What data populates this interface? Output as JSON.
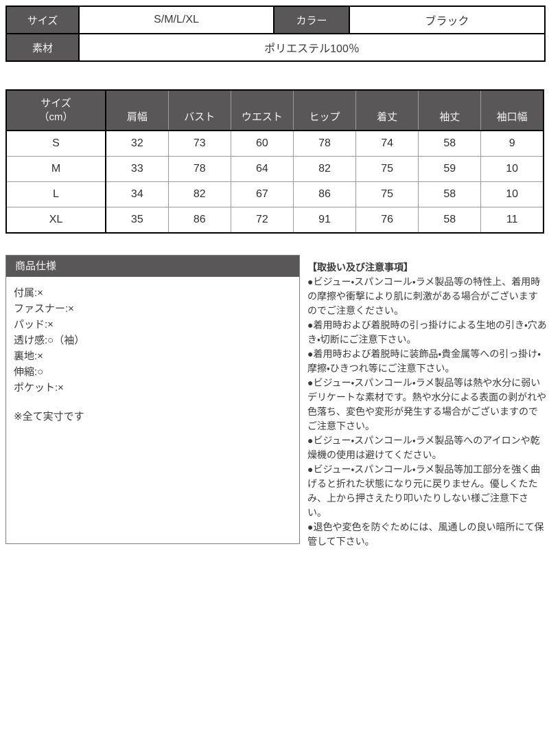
{
  "colors": {
    "header_bg": "#595757",
    "header_text": "#f5f5f5",
    "border_dark": "#000000",
    "border_light": "#9a9a9a",
    "body_text": "#3a3a3a"
  },
  "info_table": {
    "size_label": "サイズ",
    "size_value": "S/M/L/XL",
    "color_label": "カラー",
    "color_value": "ブラック",
    "material_label": "素材",
    "material_value": "ポリエステル100％"
  },
  "chart_data": {
    "type": "table",
    "title": "サイズ表（cm）",
    "columns": [
      "サイズ（cm）",
      "肩幅",
      "バスト",
      "ウエスト",
      "ヒップ",
      "着丈",
      "袖丈",
      "袖口幅"
    ],
    "rows": [
      [
        "S",
        32,
        73,
        60,
        78,
        74,
        58,
        9
      ],
      [
        "M",
        33,
        78,
        64,
        82,
        75,
        59,
        10
      ],
      [
        "L",
        34,
        82,
        67,
        86,
        75,
        58,
        10
      ],
      [
        "XL",
        35,
        86,
        72,
        91,
        76,
        58,
        11
      ]
    ]
  },
  "size_chart": {
    "title_line1": "サイズ",
    "title_line2": "（cm）",
    "columns": [
      "肩幅",
      "バスト",
      "ウエスト",
      "ヒップ",
      "着丈",
      "袖丈",
      "袖口幅"
    ]
  },
  "product_spec": {
    "title": "商品仕様",
    "items": [
      "付属:×",
      "ファスナー:×",
      "パッド:×",
      "透け感:○（袖）",
      "裏地:×",
      "伸縮:○",
      "ポケット:×"
    ],
    "note": "※全て実寸です"
  },
  "care_notes": {
    "title": "【取扱い及び注意事項】",
    "paragraphs": [
      "●ビジュー・スパンコール・ラメ製品等の特性上、着用時の摩擦や衝撃により肌に刺激がある場合がございますのでご注意ください。",
      "●着用時および着脱時の引っ掛けによる生地の引き・穴あき・切断にご注意下さい。",
      "●着用時および着脱時に装飾品・貴金属等への引っ掛け・摩擦・ひきつれ等にご注意下さい。",
      "●ビジュー・スパンコール・ラメ製品等は熱や水分に弱いデリケートな素材です。熱や水分による表面の剥がれや色落ち、変色や変形が発生する場合がございますのでご注意下さい。",
      "●ビジュー・スパンコール・ラメ製品等へのアイロンや乾燥機の使用は避けてください。",
      "●ビジュー・スパンコール・ラメ製品等加工部分を強く曲げると折れた状態になり元に戻りません。優しくたたみ、上から押さえたり叩いたりしない様ご注意下さい。",
      "●退色や変色を防ぐためには、風通しの良い暗所にて保管して下さい。"
    ]
  }
}
